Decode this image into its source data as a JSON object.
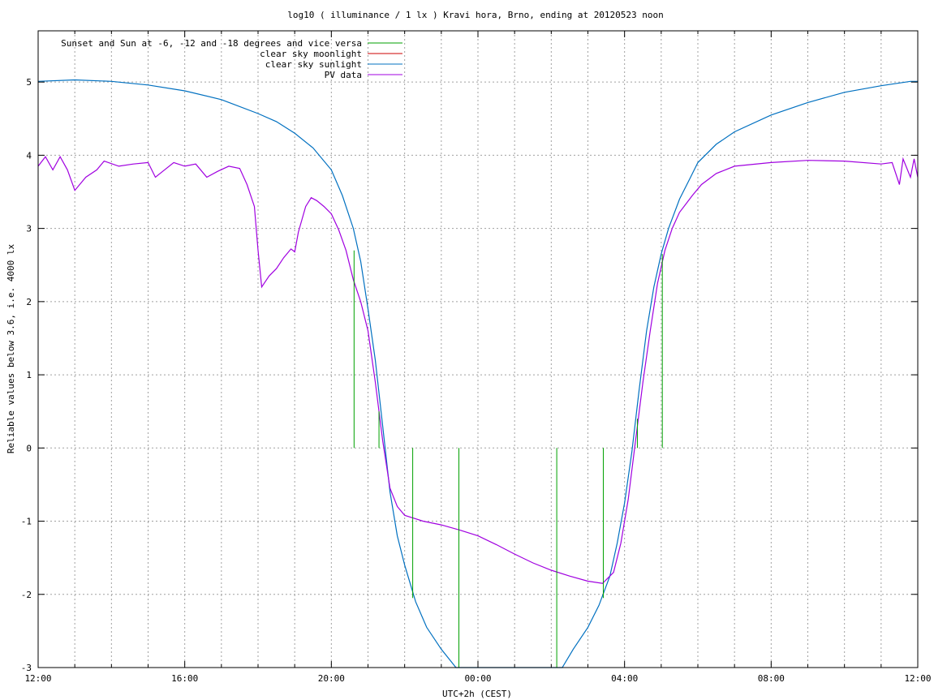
{
  "chart_data": {
    "type": "line",
    "title": "log10 ( illuminance / 1 lx ) Kravi hora, Brno, ending at 20120523 noon",
    "xlabel": "UTC+2h (CEST)",
    "ylabel": "Reliable values below 3.6, i.e. 4000 lx",
    "xlim": [
      12,
      36
    ],
    "ylim": [
      -3,
      5.7
    ],
    "x_ticks": [
      12,
      16,
      20,
      24,
      28,
      32,
      36
    ],
    "x_tick_labels": [
      "12:00",
      "16:00",
      "20:00",
      "00:00",
      "04:00",
      "08:00",
      "12:00"
    ],
    "y_ticks": [
      -3,
      -2,
      -1,
      0,
      1,
      2,
      3,
      4,
      5
    ],
    "y_tick_labels": [
      "-3",
      "-2",
      "-1",
      "0",
      "1",
      "2",
      "3",
      "4",
      "5"
    ],
    "grid": true,
    "legend_position": "top-left",
    "series": [
      {
        "name": "Sunset and Sun at -6, -12 and -18 degrees and vice versa",
        "color": "#00a000",
        "style": "impulses",
        "points": [
          {
            "x": 20.62,
            "y": 2.7
          },
          {
            "x": 21.3,
            "y": 0.5
          },
          {
            "x": 22.22,
            "y": -2.05
          },
          {
            "x": 23.48,
            "y": -3.0
          },
          {
            "x": 26.15,
            "y": -3.0
          },
          {
            "x": 27.42,
            "y": -2.05
          },
          {
            "x": 28.35,
            "y": 0.4
          },
          {
            "x": 29.03,
            "y": 2.65
          }
        ]
      },
      {
        "name": "clear sky moonlight",
        "color": "#cc0000",
        "points": []
      },
      {
        "name": "clear sky sunlight",
        "color": "#0070c0",
        "points": [
          {
            "x": 12.0,
            "y": 5.01
          },
          {
            "x": 13.0,
            "y": 5.03
          },
          {
            "x": 14.0,
            "y": 5.01
          },
          {
            "x": 15.0,
            "y": 4.96
          },
          {
            "x": 16.0,
            "y": 4.88
          },
          {
            "x": 17.0,
            "y": 4.76
          },
          {
            "x": 18.0,
            "y": 4.57
          },
          {
            "x": 18.5,
            "y": 4.46
          },
          {
            "x": 19.0,
            "y": 4.3
          },
          {
            "x": 19.5,
            "y": 4.1
          },
          {
            "x": 20.0,
            "y": 3.8
          },
          {
            "x": 20.3,
            "y": 3.45
          },
          {
            "x": 20.6,
            "y": 3.0
          },
          {
            "x": 20.8,
            "y": 2.55
          },
          {
            "x": 21.0,
            "y": 1.9
          },
          {
            "x": 21.2,
            "y": 1.2
          },
          {
            "x": 21.4,
            "y": 0.3
          },
          {
            "x": 21.6,
            "y": -0.6
          },
          {
            "x": 21.8,
            "y": -1.2
          },
          {
            "x": 22.0,
            "y": -1.6
          },
          {
            "x": 22.3,
            "y": -2.1
          },
          {
            "x": 22.6,
            "y": -2.45
          },
          {
            "x": 23.0,
            "y": -2.75
          },
          {
            "x": 23.4,
            "y": -3.0
          },
          {
            "x": 26.3,
            "y": -3.0
          },
          {
            "x": 26.6,
            "y": -2.75
          },
          {
            "x": 27.0,
            "y": -2.45
          },
          {
            "x": 27.3,
            "y": -2.15
          },
          {
            "x": 27.6,
            "y": -1.75
          },
          {
            "x": 27.8,
            "y": -1.3
          },
          {
            "x": 28.0,
            "y": -0.75
          },
          {
            "x": 28.2,
            "y": -0.05
          },
          {
            "x": 28.4,
            "y": 0.8
          },
          {
            "x": 28.6,
            "y": 1.6
          },
          {
            "x": 28.8,
            "y": 2.2
          },
          {
            "x": 29.0,
            "y": 2.65
          },
          {
            "x": 29.2,
            "y": 3.0
          },
          {
            "x": 29.5,
            "y": 3.4
          },
          {
            "x": 29.8,
            "y": 3.7
          },
          {
            "x": 30.0,
            "y": 3.9
          },
          {
            "x": 30.5,
            "y": 4.15
          },
          {
            "x": 31.0,
            "y": 4.32
          },
          {
            "x": 32.0,
            "y": 4.55
          },
          {
            "x": 33.0,
            "y": 4.72
          },
          {
            "x": 34.0,
            "y": 4.86
          },
          {
            "x": 35.0,
            "y": 4.95
          },
          {
            "x": 35.8,
            "y": 5.01
          },
          {
            "x": 36.0,
            "y": 5.01
          }
        ]
      },
      {
        "name": "PV data",
        "color": "#a000e0",
        "points": [
          {
            "x": 12.0,
            "y": 3.85
          },
          {
            "x": 12.2,
            "y": 3.98
          },
          {
            "x": 12.4,
            "y": 3.8
          },
          {
            "x": 12.6,
            "y": 3.98
          },
          {
            "x": 12.8,
            "y": 3.8
          },
          {
            "x": 13.0,
            "y": 3.52
          },
          {
            "x": 13.3,
            "y": 3.7
          },
          {
            "x": 13.6,
            "y": 3.8
          },
          {
            "x": 13.8,
            "y": 3.92
          },
          {
            "x": 14.2,
            "y": 3.85
          },
          {
            "x": 14.6,
            "y": 3.88
          },
          {
            "x": 15.0,
            "y": 3.9
          },
          {
            "x": 15.2,
            "y": 3.7
          },
          {
            "x": 15.4,
            "y": 3.78
          },
          {
            "x": 15.7,
            "y": 3.9
          },
          {
            "x": 16.0,
            "y": 3.85
          },
          {
            "x": 16.3,
            "y": 3.88
          },
          {
            "x": 16.6,
            "y": 3.7
          },
          {
            "x": 16.9,
            "y": 3.78
          },
          {
            "x": 17.2,
            "y": 3.85
          },
          {
            "x": 17.5,
            "y": 3.82
          },
          {
            "x": 17.7,
            "y": 3.6
          },
          {
            "x": 17.9,
            "y": 3.3
          },
          {
            "x": 18.0,
            "y": 2.7
          },
          {
            "x": 18.1,
            "y": 2.2
          },
          {
            "x": 18.3,
            "y": 2.35
          },
          {
            "x": 18.5,
            "y": 2.45
          },
          {
            "x": 18.7,
            "y": 2.6
          },
          {
            "x": 18.9,
            "y": 2.72
          },
          {
            "x": 19.0,
            "y": 2.68
          },
          {
            "x": 19.1,
            "y": 2.95
          },
          {
            "x": 19.3,
            "y": 3.3
          },
          {
            "x": 19.45,
            "y": 3.42
          },
          {
            "x": 19.6,
            "y": 3.38
          },
          {
            "x": 19.8,
            "y": 3.3
          },
          {
            "x": 20.0,
            "y": 3.2
          },
          {
            "x": 20.2,
            "y": 2.98
          },
          {
            "x": 20.4,
            "y": 2.7
          },
          {
            "x": 20.6,
            "y": 2.3
          },
          {
            "x": 20.8,
            "y": 2.0
          },
          {
            "x": 21.0,
            "y": 1.6
          },
          {
            "x": 21.2,
            "y": 0.9
          },
          {
            "x": 21.4,
            "y": 0.1
          },
          {
            "x": 21.6,
            "y": -0.55
          },
          {
            "x": 21.8,
            "y": -0.8
          },
          {
            "x": 22.0,
            "y": -0.92
          },
          {
            "x": 22.5,
            "y": -1.0
          },
          {
            "x": 23.0,
            "y": -1.05
          },
          {
            "x": 23.5,
            "y": -1.12
          },
          {
            "x": 24.0,
            "y": -1.2
          },
          {
            "x": 24.5,
            "y": -1.32
          },
          {
            "x": 25.0,
            "y": -1.45
          },
          {
            "x": 25.5,
            "y": -1.57
          },
          {
            "x": 26.0,
            "y": -1.67
          },
          {
            "x": 26.5,
            "y": -1.75
          },
          {
            "x": 27.0,
            "y": -1.82
          },
          {
            "x": 27.4,
            "y": -1.85
          },
          {
            "x": 27.7,
            "y": -1.7
          },
          {
            "x": 27.9,
            "y": -1.3
          },
          {
            "x": 28.1,
            "y": -0.7
          },
          {
            "x": 28.3,
            "y": 0.1
          },
          {
            "x": 28.5,
            "y": 0.9
          },
          {
            "x": 28.7,
            "y": 1.6
          },
          {
            "x": 28.9,
            "y": 2.25
          },
          {
            "x": 29.1,
            "y": 2.7
          },
          {
            "x": 29.3,
            "y": 3.0
          },
          {
            "x": 29.5,
            "y": 3.22
          },
          {
            "x": 29.7,
            "y": 3.35
          },
          {
            "x": 29.85,
            "y": 3.45
          },
          {
            "x": 30.1,
            "y": 3.6
          },
          {
            "x": 30.5,
            "y": 3.75
          },
          {
            "x": 31.0,
            "y": 3.85
          },
          {
            "x": 32.0,
            "y": 3.9
          },
          {
            "x": 33.0,
            "y": 3.93
          },
          {
            "x": 34.0,
            "y": 3.92
          },
          {
            "x": 35.0,
            "y": 3.88
          },
          {
            "x": 35.3,
            "y": 3.9
          },
          {
            "x": 35.5,
            "y": 3.6
          },
          {
            "x": 35.6,
            "y": 3.95
          },
          {
            "x": 35.8,
            "y": 3.7
          },
          {
            "x": 35.9,
            "y": 3.95
          },
          {
            "x": 36.0,
            "y": 3.7
          }
        ]
      }
    ]
  }
}
